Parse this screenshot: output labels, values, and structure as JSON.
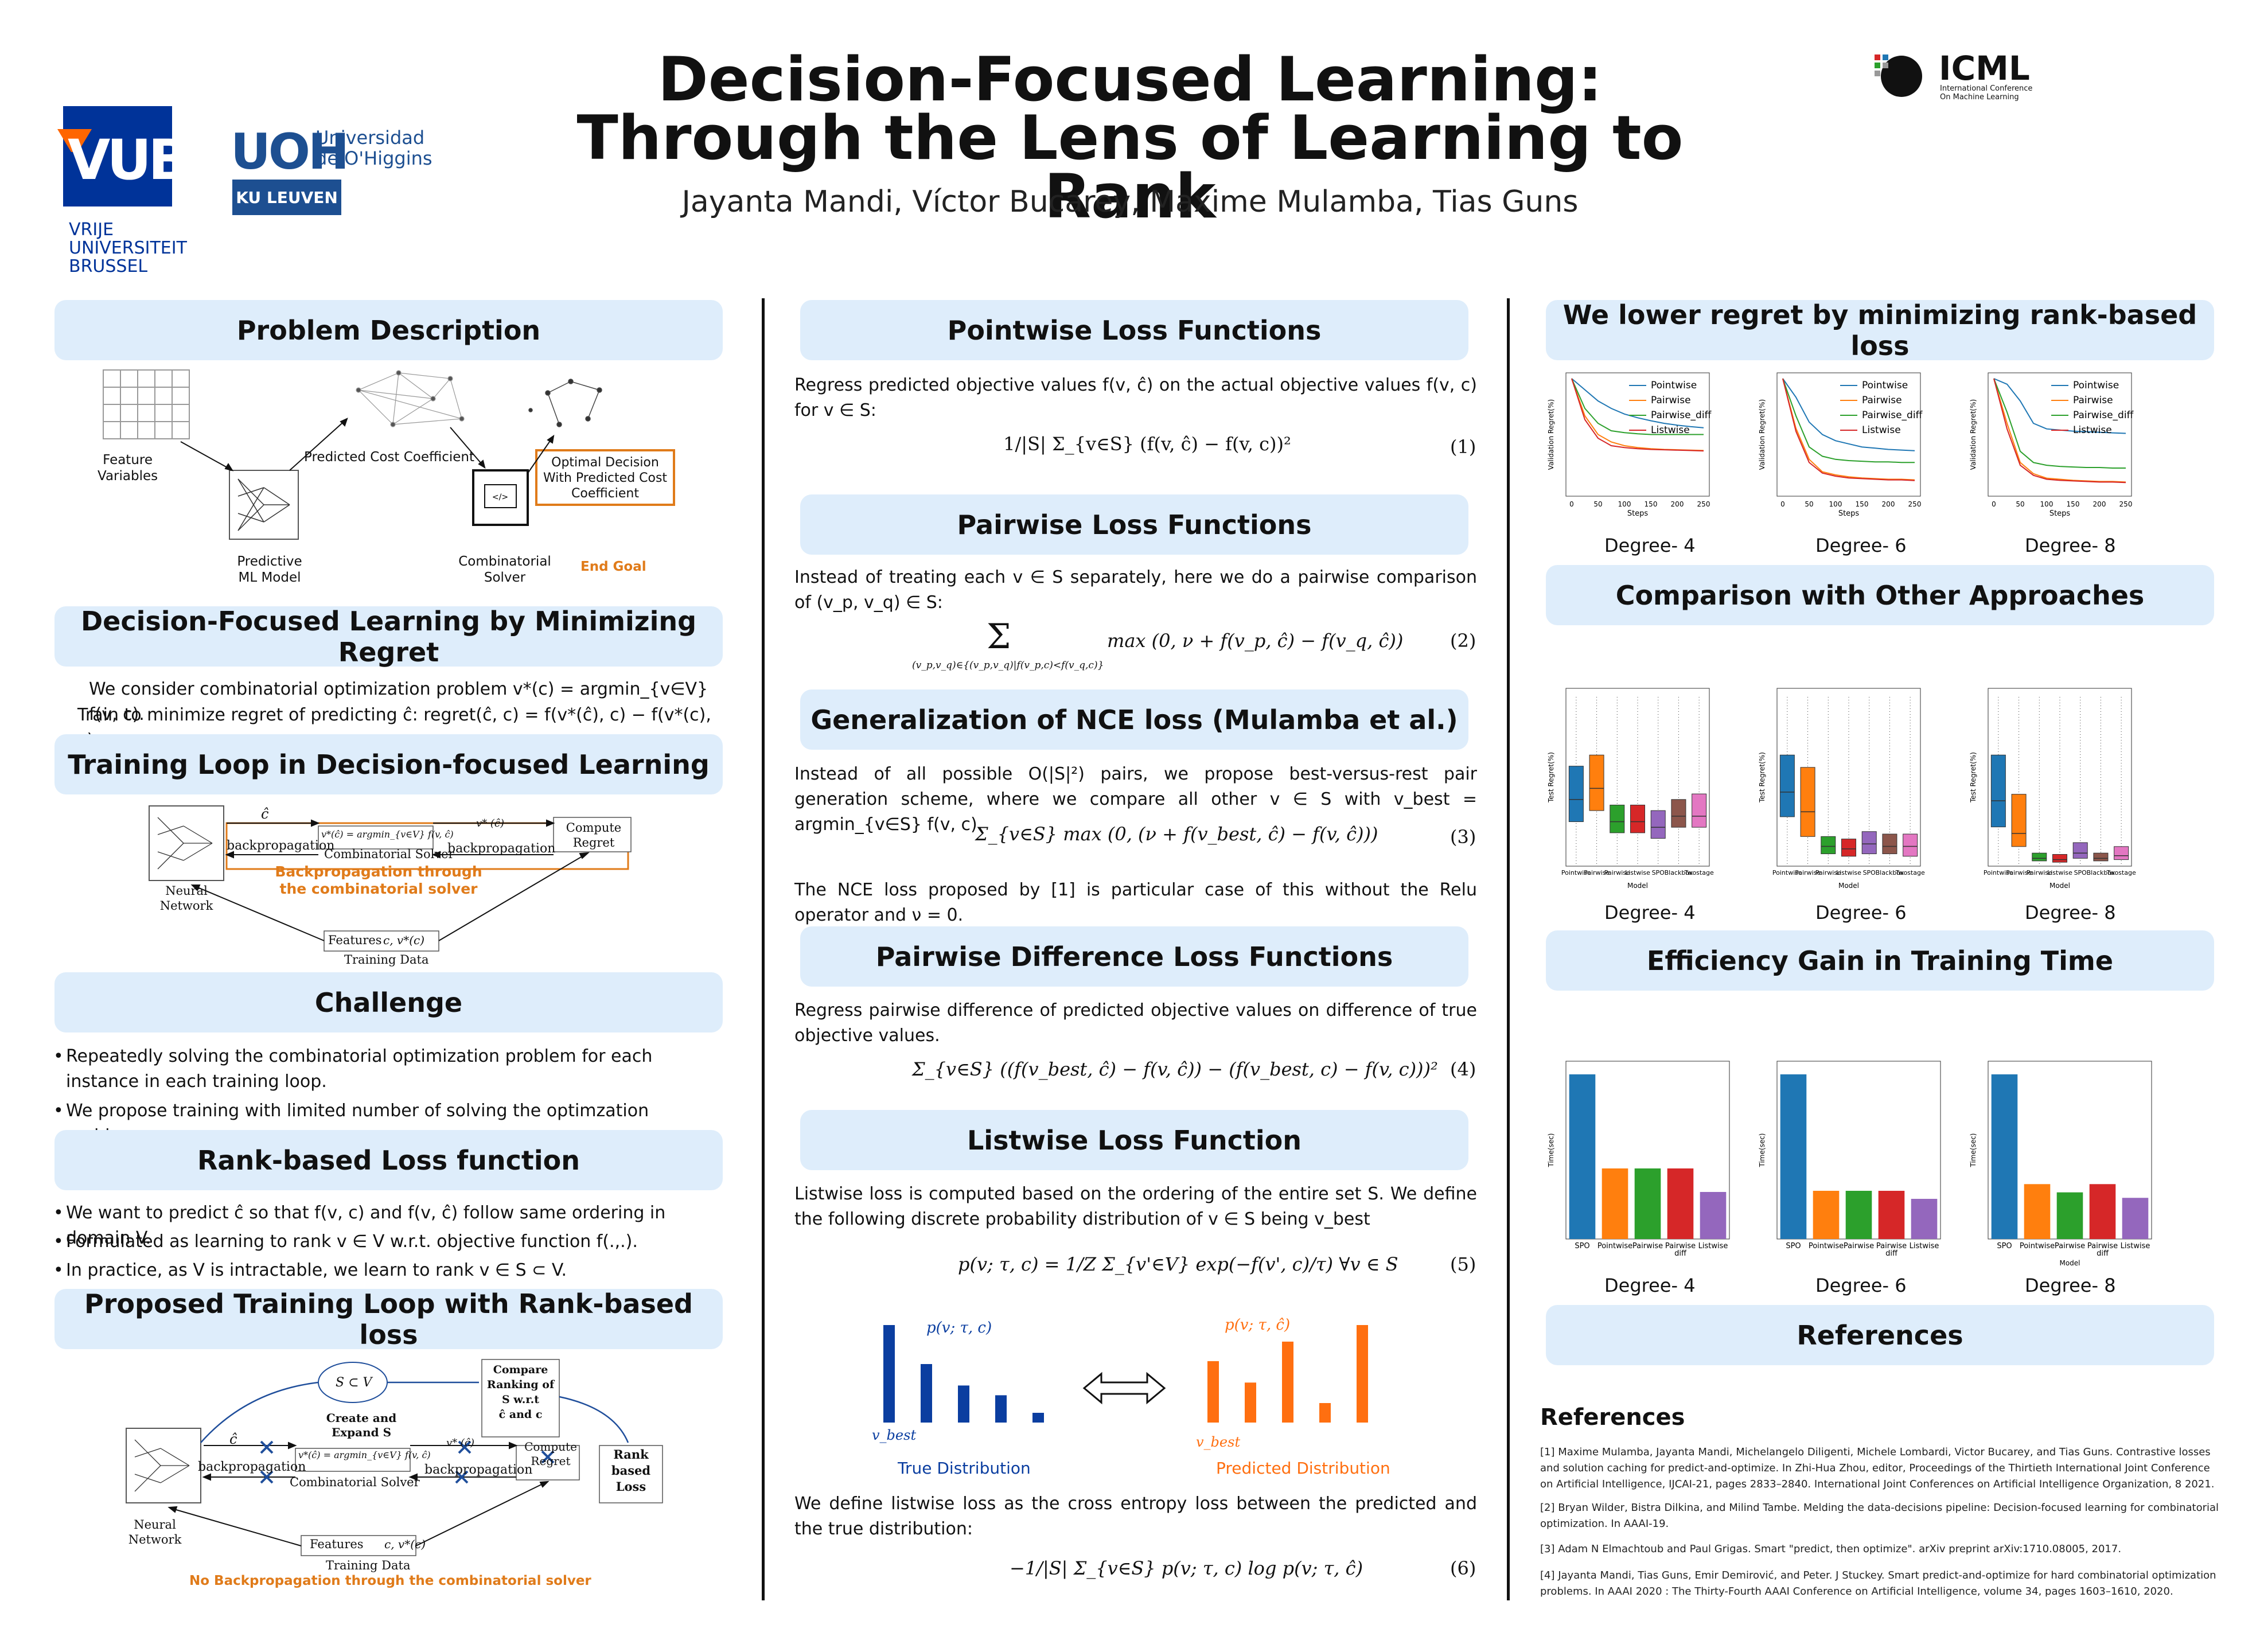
{
  "header": {
    "title_line1": "Decision-Focused Learning:",
    "title_line2": "Through the Lens of Learning to Rank",
    "authors": "Jayanta Mandi, Víctor Bucarey, Maxime Mulamba, Tias Guns",
    "vub_logo": "VUB",
    "vub_sub1": "VRIJE",
    "vub_sub2": "UNIVERSITEIT",
    "vub_sub3": "BRUSSEL",
    "uoh_logo": "UOH",
    "uoh_name1": "Universidad",
    "uoh_name2": "de O'Higgins",
    "kul": "KU LEUVEN",
    "icml": "ICML",
    "icml_sub1": "International Conference",
    "icml_sub2": "On Machine Learning",
    "colors": {
      "vub_blue": "#003399",
      "vub_orange": "#ff6600",
      "kul_blue": "#1d4f91",
      "header_bg": "#deedfb",
      "accent_orange": "#e07b1a"
    }
  },
  "left": {
    "problem": {
      "heading": "Problem Description",
      "feature": "Feature\nVariables",
      "predicted_cost": "Predicted Cost Coefficient",
      "optimal": "Optimal Decision\nWith Predicted Cost\nCoefficient",
      "predictive": "Predictive\nML Model",
      "solver": "Combinatorial\nSolver",
      "end_goal": "End Goal"
    },
    "regret": {
      "heading": "Decision-Focused Learning by Minimizing Regret",
      "line1": "We consider combinatorial optimization problem v*(c) = argmin_{v∈V} f(v, c).",
      "line2": "Train to minimize regret of predicting ĉ: regret(ĉ, c) = f(v*(ĉ), c) − f(v*(c), c)"
    },
    "training": {
      "heading": "Training Loop in Decision-focused Learning",
      "c_hat": "ĉ",
      "v_formula": "v*(ĉ) = argmin_{v∈V} f(v, ĉ)",
      "v_star": "v* (ĉ)",
      "backprop1": "backpropagation",
      "backprop2": "backpropagation",
      "solver": "Combinatorial Solver",
      "compute": "Compute\nRegret",
      "neural": "Neural\nNetwork",
      "note": "Backpropagation through\nthe combinatorial solver",
      "features": "Features",
      "cv": "c, v*(c)",
      "data": "Training Data"
    },
    "challenge": {
      "heading": "Challenge",
      "b1": "Repeatedly solving the combinatorial optimization problem for each instance in each training loop.",
      "b2": "We propose training with limited number of solving the optimzation problem."
    },
    "rank": {
      "heading": "Rank-based Loss function",
      "b1": "We want to predict ĉ so that f(v, c) and f(v, ĉ) follow same ordering in domain V.",
      "b2": "Formulated as learning to rank v ∈ V w.r.t. objective function f(.,.).",
      "b3": "In practice, as V is intractable, we learn to rank v ∈ S ⊂ V."
    },
    "proposed": {
      "heading": "Proposed Training Loop with Rank-based loss",
      "cloud": "S ⊂ V",
      "create": "Create and\nExpand S",
      "compare": "Compare\nRanking of\nS w.r.t\nĉ and c",
      "rank_loss": "Rank\nbased\nLoss",
      "c_hat": "ĉ",
      "v_formula": "v*(ĉ) = argmin_{v∈V} f(v, ĉ)",
      "v_star": "v* (ĉ)",
      "backprop1": "backpropagation",
      "backprop2": "backpropagation",
      "solver": "Combinatorial Solver",
      "compute": "Compute\nRegret",
      "neural": "Neural\nNetwork",
      "features": "Features",
      "cv": "c, v*(c)",
      "data": "Training Data",
      "note": "No Backpropagation through the combinatorial solver"
    }
  },
  "middle": {
    "pointwise": {
      "heading": "Pointwise Loss Functions",
      "text": "Regress predicted objective values f(v, ĉ) on the actual objective values f(v, c) for v ∈ S:",
      "eq": "1/|S| Σ_{v∈S} (f(v, ĉ) − f(v, c))²",
      "num": "(1)"
    },
    "pairwise": {
      "heading": "Pairwise Loss Functions",
      "text": "Instead of treating each v ∈ S separately, here we do a pairwise comparison of (v_p, v_q) ∈ S:",
      "eq": "max (0, ν + f(v_p, ĉ) − f(v_q, ĉ))",
      "sum_sub": "(v_p,v_q)∈{(v_p,v_q)|f(v_p,c)<f(v_q,c)}",
      "num": "(2)"
    },
    "nce": {
      "heading": "Generalization of NCE loss (Mulamba et al.)",
      "text1": "Instead of all possible O(|S|²) pairs, we propose best-versus-rest pair generation scheme, where we compare all other v ∈ S with v_best = argmin_{v∈S} f(v, c).",
      "eq": "Σ_{v∈S} max (0, (ν + f(v_best, ĉ) − f(v, ĉ)))",
      "num": "(3)",
      "text2": "The NCE loss proposed by [1] is particular case of this without the Relu operator and ν = 0."
    },
    "pairdiff": {
      "heading": "Pairwise Difference Loss Functions",
      "text": "Regress pairwise difference of predicted objective values on difference of true objective values.",
      "eq": "Σ_{v∈S} ((f(v_best, ĉ) − f(v, ĉ)) − (f(v_best, c) − f(v, c)))²",
      "num": "(4)"
    },
    "listwise": {
      "heading": "Listwise Loss Function",
      "text": "Listwise loss is computed based on the ordering of the entire set S. We define the following discrete probability distribution of v ∈ S being v_best",
      "eq": "p(v; τ, c) = 1/Z Σ_{v'∈V} exp(−f(v', c)/τ) ∀v ∈ S",
      "num": "(5)",
      "p_true": "p(v; τ, c)",
      "p_pred": "p(v; τ, ĉ)",
      "vbest": "v_best",
      "true_dist": "True Distribution",
      "pred_dist": "Predicted Distribution",
      "true_vals": [
        1.0,
        0.6,
        0.38,
        0.28,
        0.1
      ],
      "pred_vals": [
        0.63,
        0.41,
        0.83,
        0.2,
        1.0
      ],
      "text2": "We define listwise loss as the cross entropy loss between the predicted and the true distribution:",
      "eq2": "−1/|S| Σ_{v∈S} p(v; τ, c) log p(v; τ, ĉ)",
      "num2": "(6)"
    }
  },
  "right": {
    "regret_heading": "We lower regret by minimizing rank-based loss",
    "comparison_heading": "Comparison with Other Approaches",
    "efficiency_heading": "Efficiency Gain in Training Time",
    "references_heading": "References",
    "degree_labels": [
      "Degree- 4",
      "Degree- 6",
      "Degree- 8"
    ],
    "refs_title": "References",
    "refs": [
      "[1] Maxime Mulamba, Jayanta Mandi, Michelangelo Diligenti, Michele Lombardi, Victor Bucarey, and Tias Guns. Contrastive losses and solution caching for predict-and-optimize. In Zhi-Hua Zhou, editor, Proceedings of the Thirtieth International Joint Conference on Artificial Intelligence, IJCAI-21, pages 2833–2840. International Joint Conferences on Artificial Intelligence Organization, 8 2021.",
      "[2] Bryan Wilder, Bistra Dilkina, and Milind Tambe. Melding the data-decisions pipeline: Decision-focused learning for combinatorial optimization. In AAAI-19.",
      "[3] Adam N Elmachtoub and Paul Grigas. Smart \"predict, then optimize\". arXiv preprint arXiv:1710.08005, 2017.",
      "[4] Jayanta Mandi, Tias Guns, Emir Demirović, and Peter. J Stuckey. Smart predict-and-optimize for hard combinatorial optimization problems. In AAAI 2020 : The Thirty-Fourth AAAI Conference on Artificial Intelligence, volume 34, pages 1603–1610, 2020."
    ]
  },
  "chart_data": [
    {
      "type": "line",
      "title": "",
      "xlabel": "Steps",
      "ylabel": "Validation Regret(%)",
      "x": [
        0,
        25,
        50,
        75,
        100,
        125,
        150,
        175,
        200,
        225,
        250
      ],
      "series": [
        {
          "name": "Pointwise",
          "color": "#1f77b4",
          "values": [
            30,
            27,
            24,
            22,
            20.5,
            19.5,
            18.7,
            18,
            17.5,
            17.1,
            16.8
          ]
        },
        {
          "name": "Pairwise",
          "color": "#ff7f0e",
          "values": [
            30,
            20,
            15,
            13,
            12,
            11.5,
            11.2,
            11,
            10.9,
            10.8,
            10.7
          ]
        },
        {
          "name": "Pairwise_diff",
          "color": "#2ca02c",
          "values": [
            30,
            22,
            18,
            16,
            15.5,
            15.2,
            15,
            15,
            15,
            15,
            15
          ]
        },
        {
          "name": "Listwise",
          "color": "#d62728",
          "values": [
            30,
            19,
            14,
            12,
            11.5,
            11.2,
            11,
            10.9,
            10.8,
            10.7,
            10.6
          ]
        }
      ]
    },
    {
      "type": "line",
      "title": "",
      "xlabel": "Steps",
      "ylabel": "Validation Regret(%)",
      "x": [
        0,
        25,
        50,
        75,
        100,
        125,
        150,
        175,
        200,
        225,
        250
      ],
      "series": [
        {
          "name": "Pointwise",
          "color": "#1f77b4",
          "values": [
            180,
            150,
            110,
            90,
            80,
            75,
            70,
            68,
            66,
            65,
            64
          ]
        },
        {
          "name": "Pairwise",
          "color": "#ff7f0e",
          "values": [
            180,
            100,
            50,
            30,
            25,
            22,
            20,
            19,
            18,
            18,
            17
          ]
        },
        {
          "name": "Pairwise_diff",
          "color": "#2ca02c",
          "values": [
            180,
            120,
            70,
            55,
            50,
            48,
            47,
            46,
            46,
            45,
            45
          ]
        },
        {
          "name": "Listwise",
          "color": "#d62728",
          "values": [
            180,
            95,
            45,
            28,
            23,
            20,
            19,
            18,
            17,
            17,
            16
          ]
        }
      ]
    },
    {
      "type": "line",
      "title": "",
      "xlabel": "Steps",
      "ylabel": "Validation Regret(%)",
      "x": [
        0,
        25,
        50,
        75,
        100,
        125,
        150,
        175,
        200,
        225,
        250
      ],
      "series": [
        {
          "name": "Pointwise",
          "color": "#1f77b4",
          "values": [
            200,
            190,
            160,
            120,
            110,
            108,
            106,
            105,
            104,
            103,
            102
          ]
        },
        {
          "name": "Pairwise",
          "color": "#ff7f0e",
          "values": [
            200,
            120,
            50,
            30,
            22,
            20,
            18,
            17,
            16,
            16,
            15
          ]
        },
        {
          "name": "Pairwise_diff",
          "color": "#2ca02c",
          "values": [
            200,
            140,
            70,
            50,
            45,
            43,
            42,
            41,
            41,
            40,
            40
          ]
        },
        {
          "name": "Listwise",
          "color": "#d62728",
          "values": [
            200,
            110,
            45,
            27,
            20,
            18,
            17,
            16,
            15,
            15,
            14
          ]
        }
      ]
    },
    {
      "type": "bar",
      "title": "",
      "xlabel": "Model",
      "ylabel": "Test Regret(%)",
      "categories": [
        "Pointwise",
        "Pairwise\ndiff",
        "Pairwise",
        "Listwise",
        "SPO",
        "Blackbox",
        "Twostage"
      ],
      "medians": [
        6,
        7,
        4,
        4,
        3.5,
        4.5,
        4.5
      ],
      "q1": [
        4,
        5,
        3,
        3,
        2.5,
        3.5,
        3.5
      ],
      "q3": [
        9,
        10,
        5.5,
        5.5,
        5,
        6,
        6.5
      ]
    },
    {
      "type": "bar",
      "title": "",
      "xlabel": "Model",
      "ylabel": "Test Regret(%)",
      "categories": [
        "Pointwise",
        "Pairwise\ndiff",
        "Pairwise",
        "Listwise",
        "SPO",
        "Blackbox",
        "Twostage"
      ],
      "medians": [
        30,
        22,
        8,
        7,
        9,
        8,
        8
      ],
      "q1": [
        20,
        12,
        5,
        4,
        5,
        5,
        4
      ],
      "q3": [
        45,
        40,
        12,
        11,
        14,
        13,
        13
      ]
    },
    {
      "type": "bar",
      "title": "",
      "xlabel": "Model",
      "ylabel": "Test Regret(%)",
      "categories": [
        "Pointwise",
        "Pairwise\ndiff",
        "Pairwise",
        "Listwise",
        "SPO",
        "Blackbox",
        "Twostage"
      ],
      "medians": [
        50,
        25,
        6,
        5,
        10,
        6,
        8
      ],
      "q1": [
        30,
        15,
        4,
        3,
        6,
        4,
        5
      ],
      "q3": [
        85,
        55,
        10,
        9,
        18,
        10,
        15
      ]
    },
    {
      "type": "bar",
      "title": "",
      "xlabel": "",
      "ylabel": "Time(sec)",
      "categories": [
        "SPO",
        "Pointwise",
        "Pairwise",
        "Pairwise\ndiff",
        "Listwise"
      ],
      "values": [
        14,
        6,
        6,
        6,
        4
      ]
    },
    {
      "type": "bar",
      "title": "",
      "xlabel": "",
      "ylabel": "Time(sec)",
      "categories": [
        "SPO",
        "Pointwise",
        "Pairwise",
        "Pairwise\ndiff",
        "Listwise"
      ],
      "values": [
        20.5,
        6,
        6,
        6,
        5
      ]
    },
    {
      "type": "bar",
      "title": "",
      "xlabel": "Model",
      "ylabel": "Time(sec)",
      "categories": [
        "SPO",
        "Pointwise",
        "Pairwise",
        "Pairwise\ndiff",
        "Listwise"
      ],
      "values": [
        30,
        10,
        8.5,
        10,
        7.5
      ]
    }
  ]
}
